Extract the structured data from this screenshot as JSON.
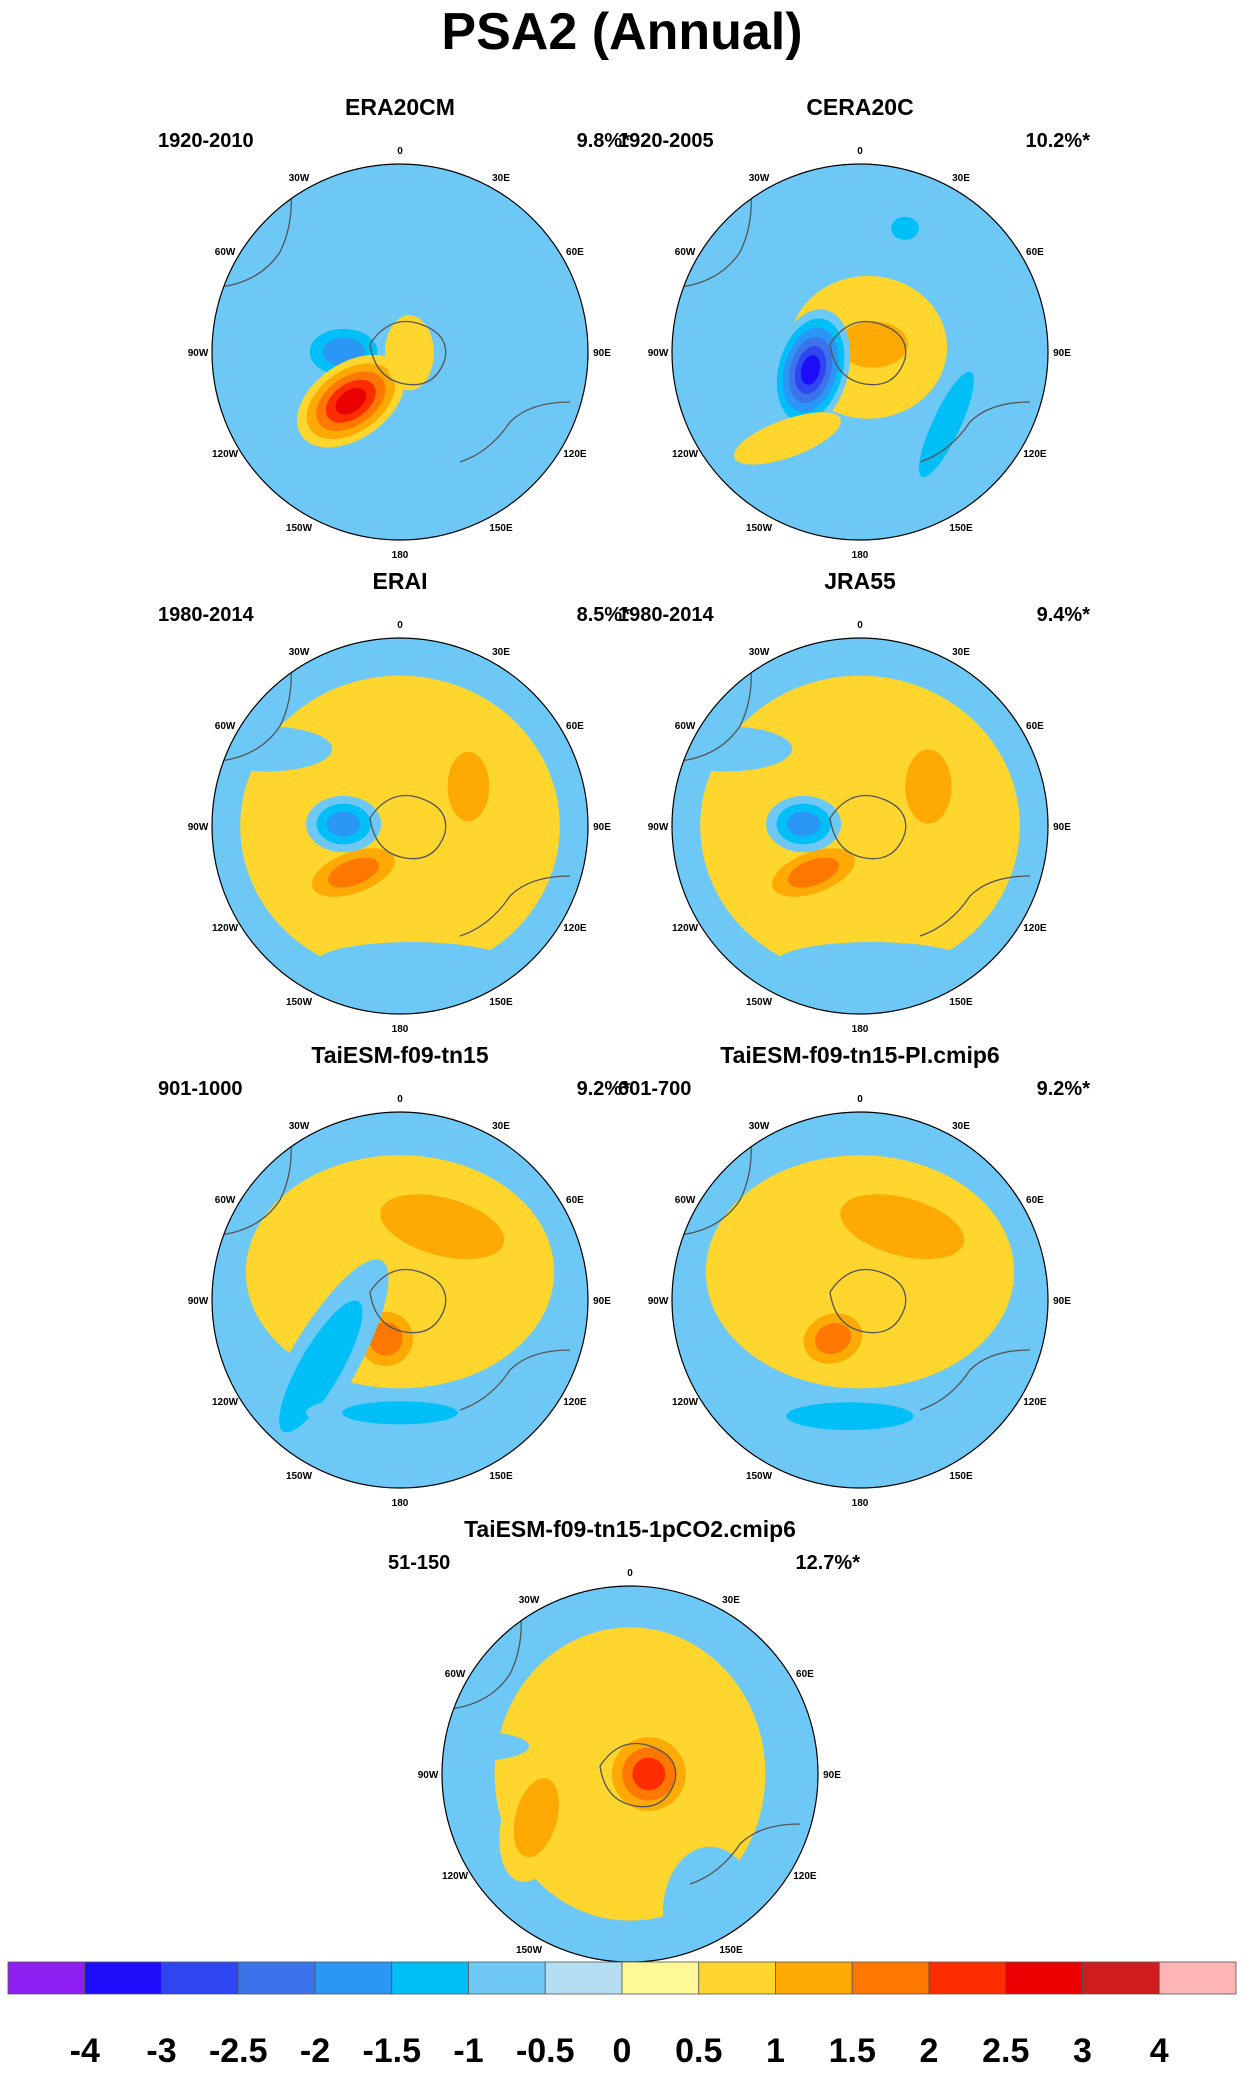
{
  "title": "PSA2 (Annual)",
  "panels": [
    {
      "name": "ERA20CM",
      "period": "1920-2010",
      "variance": "9.8%*",
      "blobs": [
        {
          "lon": 0,
          "r": 0.55,
          "rx": 0.55,
          "ry": 0.42,
          "rot": 0,
          "levels": [
            -0.5
          ]
        },
        {
          "lon": 340,
          "r": 0.4,
          "rx": 0.75,
          "ry": 0.25,
          "rot": 30,
          "levels": [
            -0.5
          ]
        },
        {
          "lon": 210,
          "r": 0.55,
          "rx": 0.45,
          "ry": 0.2,
          "rot": -30,
          "levels": [
            -0.5
          ]
        },
        {
          "lon": 160,
          "r": 0.55,
          "rx": 0.3,
          "ry": 0.5,
          "rot": -20,
          "levels": [
            -0.5
          ]
        },
        {
          "lon": 270,
          "r": 0.3,
          "rx": 0.25,
          "ry": 0.17,
          "rot": 0,
          "levels": [
            -0.5,
            -1,
            -1.5
          ]
        },
        {
          "lon": 225,
          "r": 0.37,
          "rx": 0.32,
          "ry": 0.2,
          "rot": -35,
          "levels": [
            0.5,
            1,
            1.5,
            2,
            2.5
          ]
        },
        {
          "lon": 95,
          "r": 0.05,
          "rx": 0.13,
          "ry": 0.2,
          "rot": 0,
          "levels": [
            0.5
          ]
        }
      ]
    },
    {
      "name": "CERA20C",
      "period": "1920-2005",
      "variance": "10.2%*",
      "blobs": [
        {
          "lon": 0,
          "r": 0.5,
          "rx": 1.0,
          "ry": 0.5,
          "rot": 0,
          "levels": [
            -0.5
          ]
        },
        {
          "lon": 90,
          "r": 0.3,
          "rx": 0.6,
          "ry": 0.6,
          "rot": 0,
          "levels": [
            -0.5
          ]
        },
        {
          "lon": 160,
          "r": 0.55,
          "rx": 0.35,
          "ry": 0.5,
          "rot": 0,
          "levels": [
            -0.5
          ]
        },
        {
          "lon": 20,
          "r": 0.7,
          "rx": 0.12,
          "ry": 0.1,
          "rot": 0,
          "levels": [
            -0.5,
            -1
          ]
        },
        {
          "lon": 130,
          "r": 0.6,
          "rx": 0.12,
          "ry": 0.5,
          "rot": 25,
          "levels": [
            -0.5,
            -1
          ]
        },
        {
          "lon": 60,
          "r": 0.05,
          "rx": 0.42,
          "ry": 0.38,
          "rot": 0,
          "levels": [
            0.5
          ]
        },
        {
          "lon": 60,
          "r": 0.08,
          "rx": 0.3,
          "ry": 0.2,
          "rot": 0,
          "levels": [
            0.5,
            1
          ]
        },
        {
          "lon": 250,
          "r": 0.28,
          "rx": 0.2,
          "ry": 0.33,
          "rot": 15,
          "levels": [
            -0.5,
            -1,
            -1.5,
            -2,
            -2.5,
            -3
          ]
        },
        {
          "lon": 220,
          "r": 0.6,
          "rx": 0.3,
          "ry": 0.1,
          "rot": -20,
          "levels": [
            0.5
          ]
        }
      ]
    },
    {
      "name": "ERAI",
      "period": "1980-2014",
      "variance": "8.5%*",
      "blobs": [
        {
          "lon": 0,
          "r": 0.0,
          "rx": 0.85,
          "ry": 0.8,
          "rot": 0,
          "levels": [
            0.5
          ]
        },
        {
          "lon": 60,
          "r": 0.42,
          "rx": 0.18,
          "ry": 0.3,
          "rot": 0,
          "levels": [
            0.5,
            1
          ]
        },
        {
          "lon": 225,
          "r": 0.35,
          "rx": 0.32,
          "ry": 0.15,
          "rot": -20,
          "levels": [
            0.5,
            1,
            1.5
          ]
        },
        {
          "lon": 272,
          "r": 0.3,
          "rx": 0.2,
          "ry": 0.15,
          "rot": 0,
          "levels": [
            -0.5,
            -1,
            -1.5
          ]
        },
        {
          "lon": 175,
          "r": 0.72,
          "rx": 0.5,
          "ry": 0.1,
          "rot": 0,
          "levels": [
            -0.5
          ]
        },
        {
          "lon": 300,
          "r": 0.82,
          "rx": 0.35,
          "ry": 0.12,
          "rot": 0,
          "levels": [
            -0.5
          ]
        }
      ]
    },
    {
      "name": "JRA55",
      "period": "1980-2014",
      "variance": "9.4%*",
      "blobs": [
        {
          "lon": 0,
          "r": 0.0,
          "rx": 0.85,
          "ry": 0.8,
          "rot": 0,
          "levels": [
            0.5
          ]
        },
        {
          "lon": 60,
          "r": 0.42,
          "rx": 0.2,
          "ry": 0.32,
          "rot": 0,
          "levels": [
            0.5,
            1
          ]
        },
        {
          "lon": 225,
          "r": 0.35,
          "rx": 0.32,
          "ry": 0.15,
          "rot": -20,
          "levels": [
            0.5,
            1,
            1.5
          ]
        },
        {
          "lon": 272,
          "r": 0.3,
          "rx": 0.2,
          "ry": 0.15,
          "rot": 0,
          "levels": [
            -0.5,
            -1,
            -1.5
          ]
        },
        {
          "lon": 175,
          "r": 0.72,
          "rx": 0.5,
          "ry": 0.1,
          "rot": 0,
          "levels": [
            -0.5
          ]
        },
        {
          "lon": 300,
          "r": 0.82,
          "rx": 0.35,
          "ry": 0.12,
          "rot": 0,
          "levels": [
            -0.5
          ]
        }
      ]
    },
    {
      "name": "TaiESM-f09-tn15",
      "period": "901-1000",
      "variance": "9.2%*",
      "blobs": [
        {
          "lon": 0,
          "r": 0.15,
          "rx": 0.82,
          "ry": 0.62,
          "rot": 0,
          "levels": [
            0.5
          ]
        },
        {
          "lon": 30,
          "r": 0.45,
          "rx": 0.55,
          "ry": 0.25,
          "rot": 15,
          "levels": [
            0.5,
            1
          ]
        },
        {
          "lon": 200,
          "r": 0.22,
          "rx": 0.2,
          "ry": 0.2,
          "rot": 0,
          "levels": [
            0.5,
            1,
            1.5
          ]
        },
        {
          "lon": 230,
          "r": 0.55,
          "rx": 0.18,
          "ry": 0.65,
          "rot": 30,
          "levels": [
            -0.5,
            -1
          ]
        },
        {
          "lon": 180,
          "r": 0.6,
          "rx": 0.5,
          "ry": 0.1,
          "rot": 0,
          "levels": [
            -0.5,
            -1
          ]
        }
      ]
    },
    {
      "name": "TaiESM-f09-tn15-PI.cmip6",
      "period": "601-700",
      "variance": "9.2%*",
      "blobs": [
        {
          "lon": 0,
          "r": 0.15,
          "rx": 0.82,
          "ry": 0.62,
          "rot": 0,
          "levels": [
            0.5
          ]
        },
        {
          "lon": 30,
          "r": 0.45,
          "rx": 0.55,
          "ry": 0.25,
          "rot": 15,
          "levels": [
            0.5,
            1
          ]
        },
        {
          "lon": 215,
          "r": 0.25,
          "rx": 0.22,
          "ry": 0.18,
          "rot": -20,
          "levels": [
            0.5,
            1,
            1.5
          ]
        },
        {
          "lon": 185,
          "r": 0.62,
          "rx": 0.55,
          "ry": 0.12,
          "rot": 0,
          "levels": [
            -0.5,
            -1
          ]
        }
      ]
    },
    {
      "name": "TaiESM-f09-tn15-1pCO2.cmip6",
      "period": "51-150",
      "variance": "12.7%*",
      "blobs": [
        {
          "lon": 0,
          "r": 0.0,
          "rx": 0.72,
          "ry": 0.78,
          "rot": 0,
          "levels": [
            0.5
          ]
        },
        {
          "lon": 90,
          "r": 0.1,
          "rx": 0.25,
          "ry": 0.25,
          "rot": 0,
          "levels": [
            0.5,
            1,
            1.5,
            2
          ]
        },
        {
          "lon": 245,
          "r": 0.55,
          "rx": 0.18,
          "ry": 0.35,
          "rot": 15,
          "levels": [
            0.5,
            1
          ]
        },
        {
          "lon": 280,
          "r": 0.85,
          "rx": 0.3,
          "ry": 0.08,
          "rot": 0,
          "levels": [
            -0.5
          ]
        },
        {
          "lon": 150,
          "r": 0.85,
          "rx": 0.25,
          "ry": 0.35,
          "rot": 0,
          "levels": [
            -0.5
          ]
        }
      ]
    }
  ],
  "lon_labels": [
    "0",
    "30E",
    "60E",
    "90E",
    "120E",
    "150E",
    "180",
    "150W",
    "120W",
    "90W",
    "60W",
    "30W"
  ],
  "colorbar": {
    "labels": [
      "-4",
      "-3",
      "-2.5",
      "-2",
      "-1.5",
      "-1",
      "-0.5",
      "0",
      "0.5",
      "1",
      "1.5",
      "2",
      "2.5",
      "3",
      "4"
    ],
    "colors": [
      "#8d1ff0",
      "#1e0bfa",
      "#2d46f0",
      "#3a73ea",
      "#2a96f5",
      "#00bff7",
      "#6ec8f5",
      "#b6def2",
      "#fef896",
      "#fed62d",
      "#fea904",
      "#fe7800",
      "#fe2d00",
      "#ea0000",
      "#d01c1c",
      "#ffb5b5"
    ]
  }
}
